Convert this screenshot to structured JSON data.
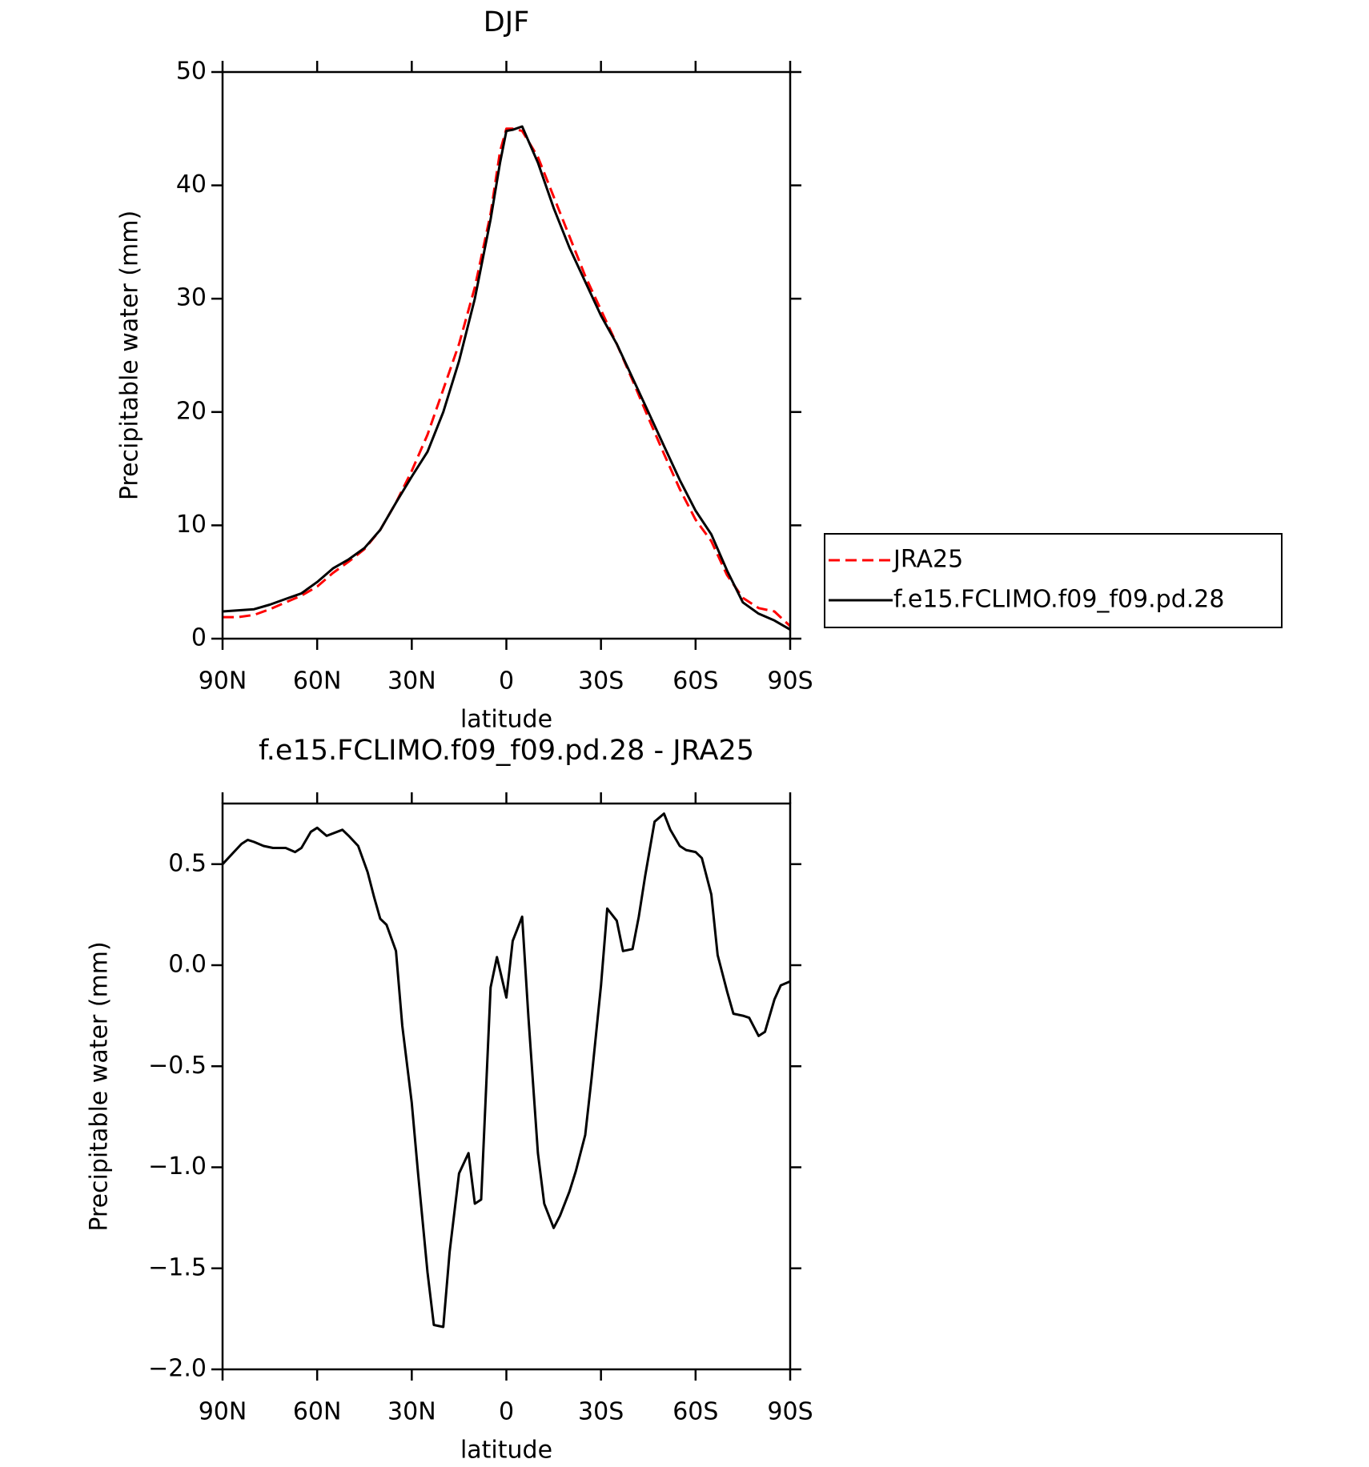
{
  "chart_data": [
    {
      "type": "line",
      "title": "DJF",
      "xlabel": "latitude",
      "ylabel": "Precipitable water (mm)",
      "x": [
        90,
        85,
        80,
        75,
        70,
        65,
        60,
        55,
        50,
        45,
        40,
        35,
        30,
        25,
        20,
        15,
        10,
        5,
        2,
        0,
        -2,
        -5,
        -10,
        -15,
        -20,
        -25,
        -30,
        -35,
        -40,
        -45,
        -50,
        -55,
        -60,
        -65,
        -70,
        -75,
        -80,
        -85,
        -90
      ],
      "series": [
        {
          "name": "JRA25",
          "color": "#ff0000",
          "dash": true,
          "values": [
            1.9,
            1.9,
            2.1,
            2.6,
            3.2,
            3.8,
            4.6,
            5.8,
            6.8,
            7.9,
            9.6,
            12.0,
            14.8,
            18,
            22,
            26,
            31,
            37.5,
            43,
            45.0,
            45.0,
            44.8,
            42.5,
            39,
            35.5,
            32,
            29,
            26,
            22.8,
            19.5,
            16.3,
            13.2,
            10.5,
            8.6,
            5.6,
            3.6,
            2.7,
            2.4,
            1.1
          ]
        },
        {
          "name": "f.e15.FCLIMO.f09_f09.pd.28",
          "color": "#000000",
          "dash": false,
          "values": [
            2.4,
            2.5,
            2.6,
            3.0,
            3.5,
            4.0,
            5.0,
            6.2,
            7.0,
            8.0,
            9.6,
            12.0,
            14.3,
            16.5,
            20.0,
            24.5,
            30,
            37,
            42,
            44.8,
            44.9,
            45.2,
            42,
            38,
            34.5,
            31.5,
            28.5,
            26,
            23,
            20,
            17,
            14,
            11.3,
            9.2,
            6,
            3.2,
            2.2,
            1.6,
            0.8
          ]
        }
      ],
      "xlim": [
        90,
        -90
      ],
      "xticks": [
        {
          "value": 90,
          "label": "90N"
        },
        {
          "value": 60,
          "label": "60N"
        },
        {
          "value": 30,
          "label": "30N"
        },
        0,
        {
          "value": -30,
          "label": "30S"
        },
        {
          "value": -60,
          "label": "60S"
        },
        {
          "value": -90,
          "label": "90S"
        }
      ],
      "ylim": [
        0,
        50
      ],
      "yticks": [
        0,
        10,
        20,
        30,
        40,
        50
      ],
      "legend": "outside right"
    },
    {
      "type": "line",
      "title": "f.e15.FCLIMO.f09_f09.pd.28 - JRA25",
      "xlabel": "latitude",
      "ylabel": "Precipitable water (mm)",
      "x": [
        90,
        87,
        84,
        82,
        80,
        77,
        74,
        70,
        67,
        65,
        62,
        60,
        57,
        52,
        50,
        47,
        44,
        42,
        40,
        38,
        35,
        33,
        30,
        28,
        25,
        23,
        20,
        18,
        15,
        12,
        10,
        8,
        5,
        3,
        0,
        -2,
        -5,
        -7,
        -10,
        -12,
        -15,
        -17,
        -20,
        -22,
        -25,
        -27,
        -30,
        -32,
        -35,
        -37,
        -40,
        -42,
        -44,
        -47,
        -50,
        -52,
        -55,
        -57,
        -60,
        -62,
        -65,
        -67,
        -70,
        -72,
        -75,
        -77,
        -80,
        -82,
        -85,
        -87,
        -90
      ],
      "series": [
        {
          "name": "f.e15.FCLIMO.f09_f09.pd.28 - JRA25",
          "color": "#000000",
          "dash": false,
          "values": [
            0.5,
            0.55,
            0.6,
            0.62,
            0.61,
            0.59,
            0.58,
            0.58,
            0.56,
            0.58,
            0.66,
            0.68,
            0.64,
            0.67,
            0.64,
            0.59,
            0.46,
            0.34,
            0.23,
            0.2,
            0.07,
            -0.3,
            -0.68,
            -1.03,
            -1.52,
            -1.78,
            -1.79,
            -1.42,
            -1.03,
            -0.93,
            -1.18,
            -1.16,
            -0.11,
            0.04,
            -0.16,
            0.12,
            0.24,
            -0.26,
            -0.93,
            -1.18,
            -1.3,
            -1.24,
            -1.12,
            -1.02,
            -0.84,
            -0.56,
            -0.1,
            0.28,
            0.22,
            0.07,
            0.08,
            0.24,
            0.44,
            0.71,
            0.75,
            0.67,
            0.59,
            0.57,
            0.56,
            0.53,
            0.35,
            0.05,
            -0.13,
            -0.24,
            -0.25,
            -0.26,
            -0.35,
            -0.33,
            -0.17,
            -0.1,
            -0.08
          ]
        }
      ],
      "xlim": [
        90,
        -90
      ],
      "xticks": [
        {
          "value": 90,
          "label": "90N"
        },
        {
          "value": 60,
          "label": "60N"
        },
        {
          "value": 30,
          "label": "30N"
        },
        0,
        {
          "value": -30,
          "label": "30S"
        },
        {
          "value": -60,
          "label": "60S"
        },
        {
          "value": -90,
          "label": "90S"
        }
      ],
      "ylim": [
        -2,
        0.8
      ],
      "yticks": [
        {
          "value": -2,
          "label": "−2.0"
        },
        {
          "value": -1.5,
          "label": "−1.5"
        },
        {
          "value": -1,
          "label": "−1.0"
        },
        {
          "value": -0.5,
          "label": "−0.5"
        },
        {
          "value": 0,
          "label": "0.0"
        },
        0.5
      ],
      "legend": "none"
    }
  ]
}
